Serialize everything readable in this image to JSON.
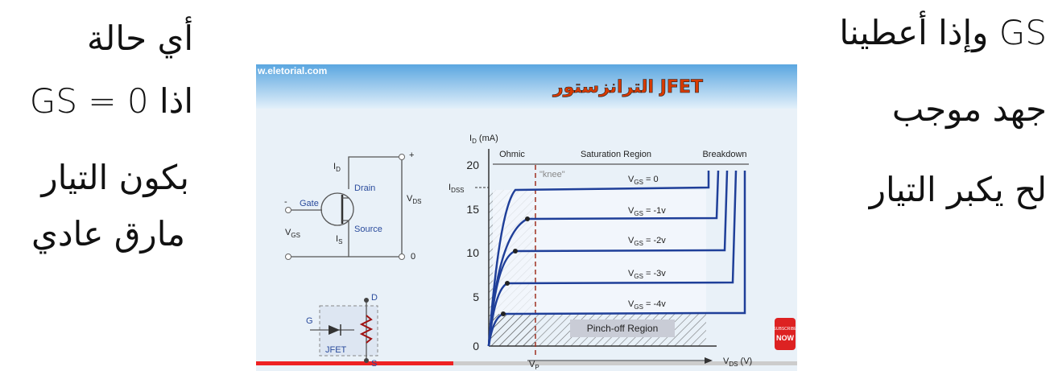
{
  "left_notes": [
    "أي حالة",
    "GS = 0 اذا",
    "بكون التيار",
    "مارق عادي"
  ],
  "right_notes": [
    "وإذا أعطينا GS",
    "جهد موجب",
    "لح يكبر التيار"
  ],
  "video": {
    "site": "w.eletorial.com",
    "title": "الترانزستور JFET",
    "circuit": {
      "plus": "+",
      "minus": "-",
      "drain_current": [
        "I",
        "D"
      ],
      "drain": "Drain",
      "vds": [
        "V",
        "DS"
      ],
      "gate": "Gate",
      "vgs": [
        "V",
        "GS"
      ],
      "source_current": [
        "I",
        "S"
      ],
      "source": "Source",
      "zero": "0"
    },
    "symbol": {
      "d": "D",
      "g": "G",
      "name": "JFET",
      "s": "S"
    },
    "graph": {
      "y_label": [
        "I",
        "D",
        " (mA)"
      ],
      "x_label": [
        "V",
        "DS",
        " (V)"
      ],
      "regions": [
        "Ohmic",
        "Saturation Region",
        "Breakdown"
      ],
      "knee": "\"knee\"",
      "idss": [
        "I",
        "DSS"
      ],
      "y_ticks": [
        "20",
        "15",
        "10",
        "5",
        "0"
      ],
      "curves": [
        [
          "V",
          "GS",
          " = 0"
        ],
        [
          "V",
          "GS",
          " = -1v"
        ],
        [
          "V",
          "GS",
          " = -2v"
        ],
        [
          "V",
          "GS",
          " = -3v"
        ],
        [
          "V",
          "GS",
          " = -4v"
        ]
      ],
      "pinch_off": "Pinch-off Region",
      "vp": [
        "V",
        "P"
      ]
    },
    "badge": [
      "SUBSCRIBE",
      "NOW"
    ]
  }
}
